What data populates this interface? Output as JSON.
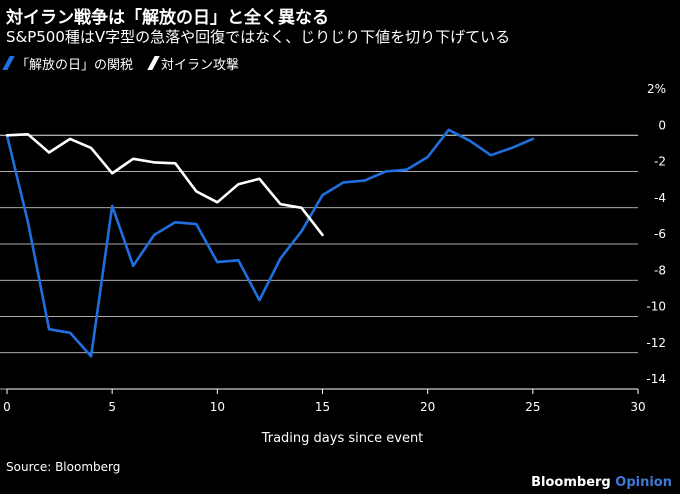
{
  "header": {
    "title": "対イラン戦争は「解放の日」と全く異なる",
    "subtitle": "S&P500種はV字型の急落や回復ではなく、じりじり下値を切り下げている"
  },
  "footer": {
    "source": "Source: Bloomberg",
    "brand": "Bloomberg",
    "brand_suffix": "Opinion"
  },
  "colors": {
    "background": "#000000",
    "text": "#ffffff",
    "series_liberation": "#1f6fe0",
    "series_iran": "#ffffff",
    "gridline": "#ffffff",
    "brand_accent": "#3d7ad6"
  },
  "chart_data": {
    "type": "line",
    "title": "",
    "xlabel": "Trading days since event",
    "ylabel": "",
    "xlim": [
      0,
      30
    ],
    "ylim": [
      -14,
      2
    ],
    "x_ticks": [
      "0",
      "5",
      "10",
      "15",
      "20",
      "25",
      "30"
    ],
    "y_ticks": [
      "2%",
      "0",
      "-2",
      "-4",
      "-6",
      "-8",
      "-10",
      "-12",
      "-14"
    ],
    "y_tick_values": [
      2,
      0,
      -2,
      -4,
      -6,
      -8,
      -10,
      -12,
      -14
    ],
    "x_tick_values": [
      0,
      5,
      10,
      15,
      20,
      25,
      30
    ],
    "grid": "horizontal",
    "legend": "top-left",
    "series": [
      {
        "name": "「解放の日」の関税",
        "color": "#1f6fe0",
        "x": [
          0,
          1,
          2,
          3,
          4,
          5,
          6,
          7,
          8,
          9,
          10,
          11,
          12,
          13,
          14,
          15,
          16,
          17,
          18,
          19,
          20,
          21,
          22,
          23,
          24,
          25
        ],
        "values": [
          0,
          -4.8,
          -10.7,
          -10.9,
          -12.2,
          -3.9,
          -7.2,
          -5.5,
          -4.8,
          -4.9,
          -7.0,
          -6.9,
          -9.1,
          -6.8,
          -5.3,
          -3.3,
          -2.6,
          -2.5,
          -2.0,
          -1.9,
          -1.2,
          0.3,
          -0.3,
          -1.1,
          -0.7,
          -0.2
        ]
      },
      {
        "name": "対イラン攻撃",
        "color": "#ffffff",
        "x": [
          0,
          1,
          2,
          3,
          4,
          5,
          6,
          7,
          8,
          9,
          10,
          11,
          12,
          13,
          14,
          15
        ],
        "values": [
          0,
          0.05,
          -0.95,
          -0.2,
          -0.7,
          -2.1,
          -1.3,
          -1.5,
          -1.55,
          -3.1,
          -3.7,
          -2.7,
          -2.4,
          -3.8,
          -4.0,
          -5.5
        ]
      }
    ]
  }
}
